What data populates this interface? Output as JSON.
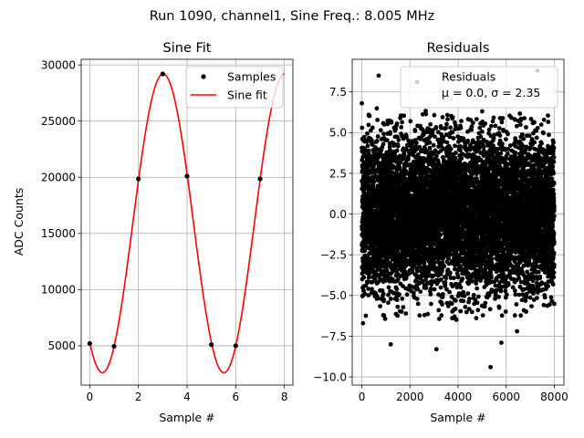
{
  "figure": {
    "suptitle": "Run 1090, channel1, Sine Freq.: 8.005 MHz"
  },
  "chart_data": [
    {
      "type": "line",
      "title": "Sine Fit",
      "xlabel": "Sample #",
      "ylabel": "ADC Counts",
      "xlim": [
        -0.35,
        8.35
      ],
      "ylim": [
        1500,
        30500
      ],
      "xticks": [
        0,
        2,
        4,
        6,
        8
      ],
      "yticks": [
        5000,
        10000,
        15000,
        20000,
        25000,
        30000
      ],
      "grid": true,
      "legend_position": "top-right",
      "series": [
        {
          "name": "Samples",
          "kind": "points",
          "color": "#000000",
          "x": [
            0,
            1,
            2,
            3,
            4,
            5,
            6,
            7
          ],
          "y": [
            5200,
            4950,
            19850,
            29200,
            20100,
            5100,
            5000,
            19850
          ]
        },
        {
          "name": "Sine fit",
          "kind": "curve",
          "color": "#ff0000",
          "function": "sine",
          "offset": 15900,
          "amplitude": 13300,
          "period_samples": 4.996,
          "phase_shift_samples": 1.77,
          "x_range": [
            0,
            8
          ]
        }
      ]
    },
    {
      "type": "scatter",
      "title": "Residuals",
      "xlabel": "Sample #",
      "ylabel": "",
      "xlim": [
        -400,
        8400
      ],
      "ylim": [
        -10.5,
        9.5
      ],
      "xticks": [
        0,
        2000,
        4000,
        6000,
        8000
      ],
      "yticks": [
        -10.0,
        -7.5,
        -5.0,
        -2.5,
        0.0,
        2.5,
        5.0,
        7.5
      ],
      "grid": true,
      "legend_position": "top-right",
      "series": [
        {
          "name": "Residuals",
          "color": "#000000",
          "distribution": "bounded-normal",
          "n_points": 8000,
          "x_range": [
            0,
            8000
          ],
          "mu": 0.0,
          "sigma": 2.35,
          "outliers": [
            [
              0,
              6.8
            ],
            [
              700,
              8.5
            ],
            [
              2300,
              8.1
            ],
            [
              7300,
              8.8
            ],
            [
              50,
              -6.7
            ],
            [
              1200,
              -8.0
            ],
            [
              3100,
              -8.3
            ],
            [
              5350,
              -9.4
            ],
            [
              5800,
              -7.9
            ],
            [
              6450,
              -7.2
            ]
          ]
        }
      ],
      "legend_lines": [
        "Residuals",
        "μ = 0.0, σ = 2.35"
      ]
    }
  ]
}
